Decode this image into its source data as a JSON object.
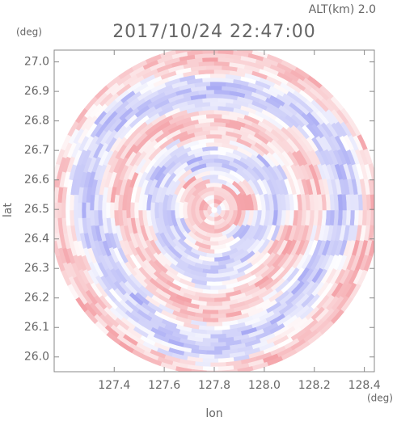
{
  "chart_data": {
    "type": "radar-ppi",
    "title": "2017/10/24 22:47:00",
    "subtitle": "ALT(km) 2.0",
    "x_label": "lon",
    "y_label": "lat",
    "x_unit": "(deg)",
    "y_unit": "(deg)",
    "xlim": [
      127.16,
      128.44
    ],
    "ylim": [
      25.95,
      27.04
    ],
    "xticks": [
      127.4,
      127.6,
      127.8,
      {
        "value": 128.0,
        "label": "128.0"
      },
      128.2,
      128.4
    ],
    "yticks": [
      {
        "value": 26.0,
        "label": "26.0"
      },
      26.1,
      26.2,
      26.3,
      26.4,
      26.5,
      26.6,
      26.7,
      26.8,
      26.9,
      {
        "value": 27.0,
        "label": "27.0"
      }
    ],
    "colors": [
      "#f4a0a6",
      "#a6a8f4"
    ]
  }
}
